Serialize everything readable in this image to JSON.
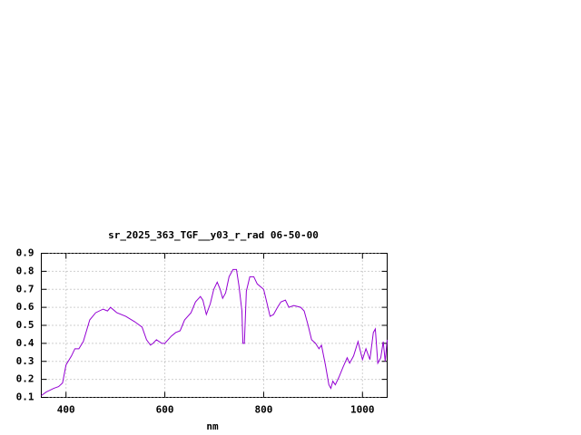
{
  "chart_data": {
    "type": "line",
    "title": "sr_2025_363_TGF__y03_r_rad 06-50-00",
    "x_label": "nm",
    "xlim": [
      350,
      1050
    ],
    "ylim": [
      0.1,
      0.9
    ],
    "xticks": [
      400,
      600,
      800,
      1000
    ],
    "yticks": [
      0.1,
      0.2,
      0.3,
      0.4,
      0.5,
      0.6,
      0.7,
      0.8,
      0.9
    ],
    "grid": true,
    "series": [
      {
        "color": "#9400d3",
        "x": [
          350,
          360,
          375,
          385,
          393,
          400,
          411,
          418,
          426,
          435,
          448,
          460,
          475,
          484,
          490,
          503,
          521,
          539,
          554,
          563,
          571,
          576,
          583,
          594,
          600,
          613,
          622,
          631,
          640,
          653,
          662,
          672,
          677,
          684,
          692,
          699,
          706,
          712,
          717,
          723,
          730,
          738,
          745,
          750,
          756,
          758,
          761,
          765,
          772,
          780,
          787,
          800,
          807,
          813,
          820,
          828,
          835,
          844,
          851,
          861,
          875,
          882,
          890,
          897,
          905,
          912,
          917,
          925,
          932,
          936,
          940,
          945,
          952,
          961,
          969,
          974,
          982,
          991,
          1000,
          1007,
          1015,
          1022,
          1026,
          1031,
          1037,
          1042,
          1046,
          1050
        ],
        "values": [
          0.11,
          0.13,
          0.15,
          0.16,
          0.18,
          0.28,
          0.33,
          0.37,
          0.37,
          0.41,
          0.53,
          0.57,
          0.59,
          0.58,
          0.6,
          0.57,
          0.55,
          0.52,
          0.49,
          0.42,
          0.39,
          0.4,
          0.42,
          0.4,
          0.4,
          0.44,
          0.46,
          0.47,
          0.53,
          0.57,
          0.63,
          0.66,
          0.64,
          0.56,
          0.62,
          0.7,
          0.74,
          0.7,
          0.65,
          0.68,
          0.77,
          0.81,
          0.81,
          0.72,
          0.58,
          0.4,
          0.4,
          0.69,
          0.77,
          0.77,
          0.73,
          0.7,
          0.62,
          0.55,
          0.56,
          0.6,
          0.63,
          0.64,
          0.6,
          0.61,
          0.6,
          0.58,
          0.5,
          0.42,
          0.4,
          0.37,
          0.39,
          0.28,
          0.17,
          0.15,
          0.19,
          0.17,
          0.21,
          0.27,
          0.32,
          0.29,
          0.33,
          0.41,
          0.31,
          0.37,
          0.31,
          0.46,
          0.48,
          0.29,
          0.32,
          0.41,
          0.3,
          0.42
        ]
      }
    ]
  }
}
